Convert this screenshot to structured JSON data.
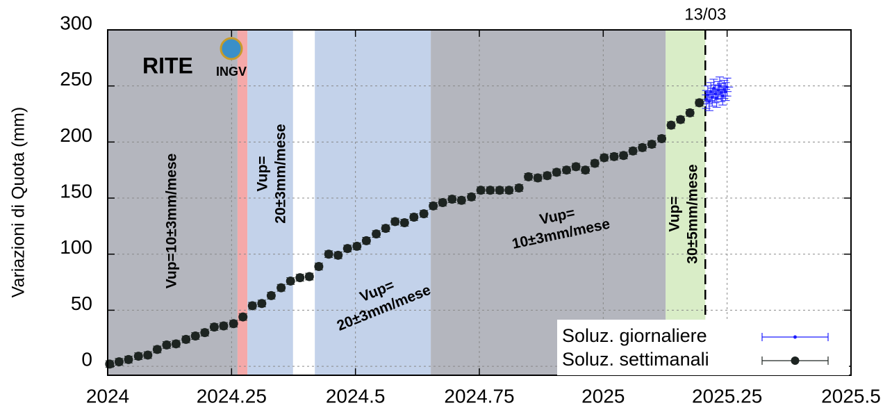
{
  "chart_data": {
    "type": "scatter",
    "y_label": "Variazioni di Quota (mm)",
    "station": "RITE",
    "logo_text": "INGV",
    "xlim": [
      2024,
      2025.5
    ],
    "xticks": [
      2024,
      2024.25,
      2024.5,
      2024.75,
      2025,
      2025.25,
      2025.5
    ],
    "ylim": [
      -8,
      300
    ],
    "yticks": [
      0,
      50,
      100,
      150,
      200,
      250,
      300
    ],
    "grid": true,
    "legend": "lower right",
    "regions": [
      {
        "start": 2024,
        "end": 2024.262,
        "color": "#b4b6be"
      },
      {
        "start": 2024.262,
        "end": 2024.282,
        "color": "#f5a9a9"
      },
      {
        "start": 2024.282,
        "end": 2024.374,
        "color": "#c3d2ea"
      },
      {
        "start": 2024.418,
        "end": 2024.652,
        "color": "#c3d2ea"
      },
      {
        "start": 2024.652,
        "end": 2025.126,
        "color": "#b4b6be"
      },
      {
        "start": 2025.126,
        "end": 2025.206,
        "color": "#d9edc7"
      }
    ],
    "events": [
      {
        "x": 2025.206,
        "label": "13/03"
      }
    ],
    "annotations": [
      [
        "Vup=10±3mm/mese"
      ],
      [
        "Vup=",
        "20±3mm/mese"
      ],
      [
        "Vup=",
        "20±3mm/mese"
      ],
      [
        "Vup=",
        "10±3mm/mese"
      ],
      [
        "Vup=",
        "30±5mm/mese"
      ]
    ],
    "series": [
      {
        "name": "Soluz. giornaliere",
        "color": "#1a1aff",
        "yerr": 8,
        "xerr": 0.012,
        "x": [
          2025.208,
          2025.211,
          2025.214,
          2025.217,
          2025.22,
          2025.223,
          2025.226,
          2025.229,
          2025.232,
          2025.235,
          2025.238,
          2025.241,
          2025.244,
          2025.247,
          2025.25
        ],
        "values": [
          238,
          242,
          236,
          245,
          240,
          248,
          243,
          239,
          246,
          250,
          244,
          241,
          247,
          245,
          249
        ]
      },
      {
        "name": "Soluz. settimanali",
        "color": "#1d2421",
        "yerr": 3,
        "x": [
          2024.004,
          2024.023,
          2024.042,
          2024.062,
          2024.081,
          2024.1,
          2024.119,
          2024.138,
          2024.158,
          2024.177,
          2024.196,
          2024.215,
          2024.234,
          2024.254,
          2024.273,
          2024.292,
          2024.311,
          2024.33,
          2024.35,
          2024.369,
          2024.388,
          2024.407,
          2024.426,
          2024.446,
          2024.465,
          2024.484,
          2024.503,
          2024.522,
          2024.542,
          2024.561,
          2024.58,
          2024.599,
          2024.618,
          2024.638,
          2024.657,
          2024.676,
          2024.695,
          2024.714,
          2024.734,
          2024.753,
          2024.772,
          2024.791,
          2024.81,
          2024.83,
          2024.849,
          2024.868,
          2024.887,
          2024.906,
          2024.926,
          2024.945,
          2024.964,
          2024.983,
          2025.002,
          2025.022,
          2025.041,
          2025.06,
          2025.079,
          2025.098,
          2025.118,
          2025.137,
          2025.156,
          2025.175,
          2025.194
        ],
        "values": [
          2,
          4,
          6,
          9,
          10,
          15,
          19,
          20,
          24,
          27,
          30,
          35,
          36,
          38,
          44,
          54,
          56,
          63,
          70,
          76,
          79,
          80,
          89,
          100,
          99,
          105,
          107,
          112,
          118,
          123,
          129,
          128,
          133,
          136,
          143,
          146,
          149,
          148,
          151,
          157,
          157,
          157,
          157,
          159,
          169,
          168,
          170,
          173,
          175,
          178,
          175,
          181,
          186,
          187,
          188,
          192,
          195,
          198,
          203,
          215,
          220,
          226,
          235
        ]
      }
    ]
  }
}
